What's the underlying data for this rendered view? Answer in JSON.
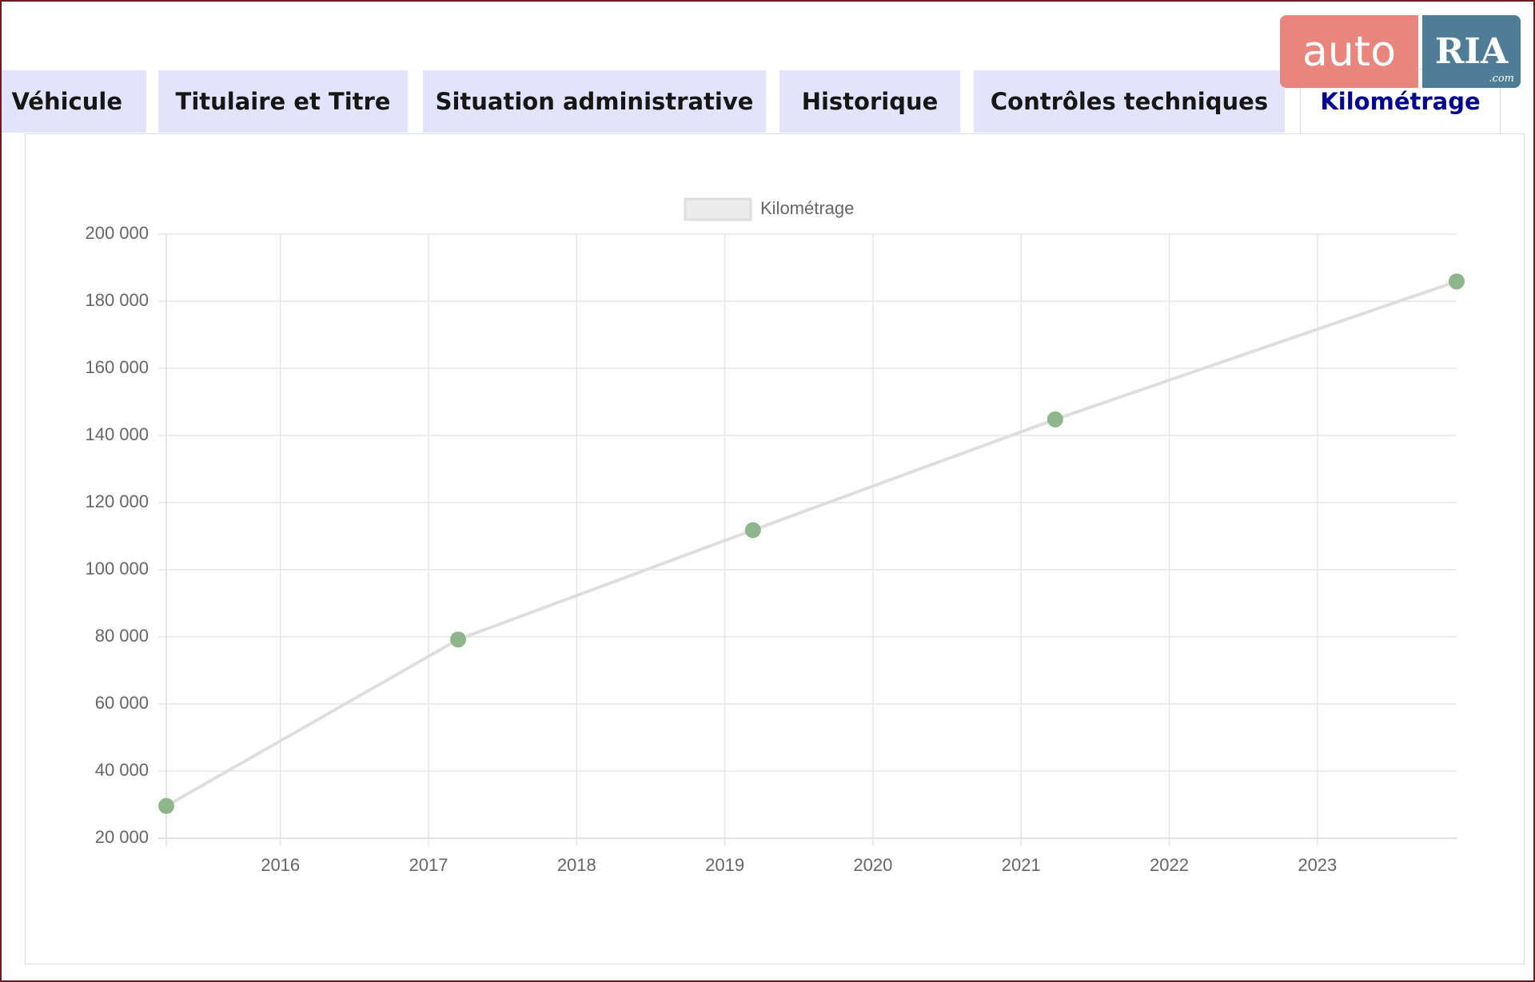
{
  "tabs": [
    "Véhicule",
    "Titulaire et Titre",
    "Situation administrative",
    "Historique",
    "Contrôles techniques",
    "Kilométrage"
  ],
  "logo": {
    "left": "auto",
    "right": "RIA",
    "suffix": ".com"
  },
  "chart_data": {
    "type": "line",
    "x": [
      2015.23,
      2017.2,
      2019.19,
      2021.23,
      2023.94
    ],
    "series": [
      {
        "name": "Kilométrage",
        "color": "#dedede",
        "point_color": "#8fb58c",
        "values": [
          29600,
          79200,
          111800,
          144800,
          185900
        ]
      }
    ],
    "xlim": [
      2015.23,
      2023.94
    ],
    "xticks": [
      2016,
      2017,
      2018,
      2019,
      2020,
      2021,
      2022,
      2023
    ],
    "ylim": [
      20000,
      200000
    ],
    "yticks": [
      {
        "value": 20000,
        "label": "20 000"
      },
      {
        "value": 40000,
        "label": "40 000"
      },
      {
        "value": 60000,
        "label": "60 000"
      },
      {
        "value": 80000,
        "label": "80 000"
      },
      {
        "value": 100000,
        "label": "100 000"
      },
      {
        "value": 120000,
        "label": "120 000"
      },
      {
        "value": 140000,
        "label": "140 000"
      },
      {
        "value": 160000,
        "label": "160 000"
      },
      {
        "value": 180000,
        "label": "180 000"
      },
      {
        "value": 200000,
        "label": "200 000"
      }
    ],
    "grid": true,
    "legend": "top"
  }
}
